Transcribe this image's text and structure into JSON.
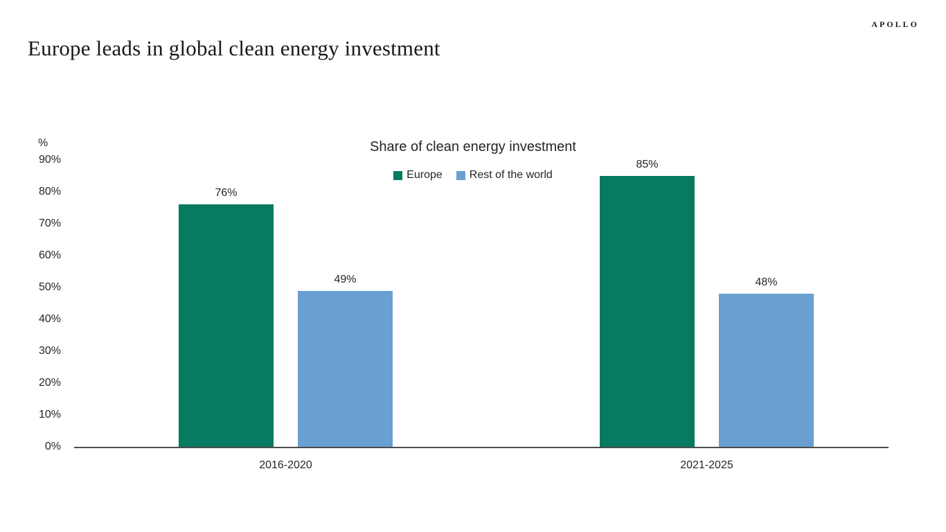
{
  "brand": {
    "logo": "APOLLO"
  },
  "page_title": "Europe leads in global clean energy investment",
  "chart_data": {
    "type": "bar",
    "title": "Share of clean energy investment",
    "categories": [
      "2016-2020",
      "2021-2025"
    ],
    "series": [
      {
        "name": "Europe",
        "color": "#077A62",
        "values": [
          76,
          85
        ],
        "labels": [
          "76%",
          "85%"
        ]
      },
      {
        "name": "Rest of the world",
        "color": "#6A9FD1",
        "values": [
          49,
          48
        ],
        "labels": [
          "49%",
          "48%"
        ]
      }
    ],
    "unit_label": "%",
    "value_suffix": "%",
    "ylim": [
      0,
      90
    ],
    "ytick_interval": 10,
    "ytick_labels": [
      "0%",
      "10%",
      "20%",
      "30%",
      "40%",
      "50%",
      "60%",
      "70%",
      "80%",
      "90%"
    ],
    "grid": false,
    "legend_position": "top-center",
    "bar_orientation": "vertical"
  }
}
